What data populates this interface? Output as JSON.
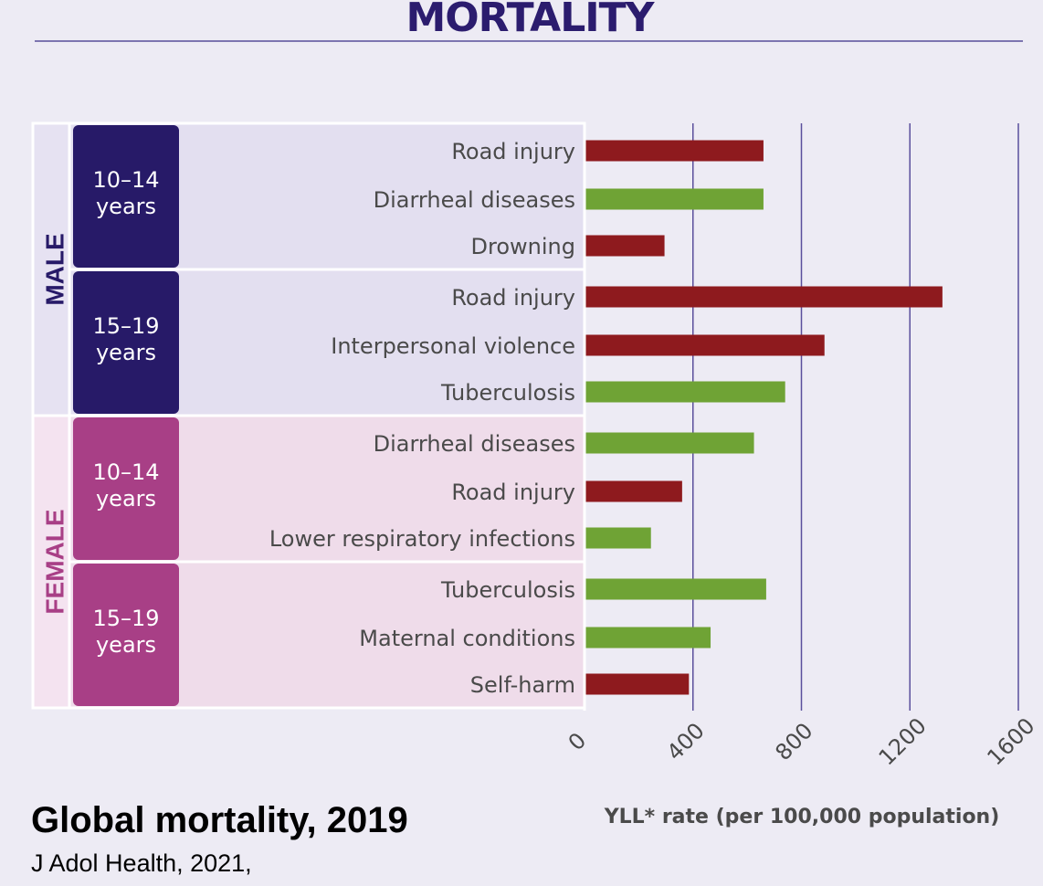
{
  "header": {
    "title": "MORTALITY"
  },
  "footer": {
    "title": "Global mortality, 2019",
    "source": "J Adol Health, 2021,"
  },
  "colors": {
    "injury": "#8e1a1e",
    "communicable": "#6fa335",
    "male_dark": "#271a68",
    "male_panel": "#e3dff0",
    "male_side": "#e6e2f2",
    "female_dark": "#a83f86",
    "female_panel": "#efdcea",
    "female_side": "#f4e3f0",
    "grid": "#5a4f9c"
  },
  "chart_data": {
    "type": "bar",
    "orientation": "horizontal",
    "title": "MORTALITY",
    "xlabel": "YLL* rate (per 100,000 population)",
    "xlim": [
      0,
      1600
    ],
    "xticks": [
      "0",
      "400",
      "800",
      "1200",
      "1600"
    ],
    "xtick_values": [
      0,
      400,
      800,
      1200,
      1600
    ],
    "groups": [
      {
        "sex": "MALE",
        "ages": [
          {
            "age_line1": "10–14",
            "age_line2": "years",
            "bars": [
              {
                "label": "Road injury",
                "value": 660,
                "category": "injury"
              },
              {
                "label": "Diarrheal diseases",
                "value": 660,
                "category": "communicable"
              },
              {
                "label": "Drowning",
                "value": 295,
                "category": "injury"
              }
            ]
          },
          {
            "age_line1": "15–19",
            "age_line2": "years",
            "bars": [
              {
                "label": "Road injury",
                "value": 1320,
                "category": "injury"
              },
              {
                "label": "Interpersonal violence",
                "value": 885,
                "category": "injury"
              },
              {
                "label": "Tuberculosis",
                "value": 740,
                "category": "communicable"
              }
            ]
          }
        ]
      },
      {
        "sex": "FEMALE",
        "ages": [
          {
            "age_line1": "10–14",
            "age_line2": "years",
            "bars": [
              {
                "label": "Diarrheal diseases",
                "value": 625,
                "category": "communicable"
              },
              {
                "label": "Road injury",
                "value": 360,
                "category": "injury"
              },
              {
                "label": "Lower respiratory infections",
                "value": 245,
                "category": "communicable"
              }
            ]
          },
          {
            "age_line1": "15–19",
            "age_line2": "years",
            "bars": [
              {
                "label": "Tuberculosis",
                "value": 670,
                "category": "communicable"
              },
              {
                "label": "Maternal conditions",
                "value": 465,
                "category": "communicable"
              },
              {
                "label": "Self-harm",
                "value": 385,
                "category": "injury"
              }
            ]
          }
        ]
      }
    ]
  }
}
